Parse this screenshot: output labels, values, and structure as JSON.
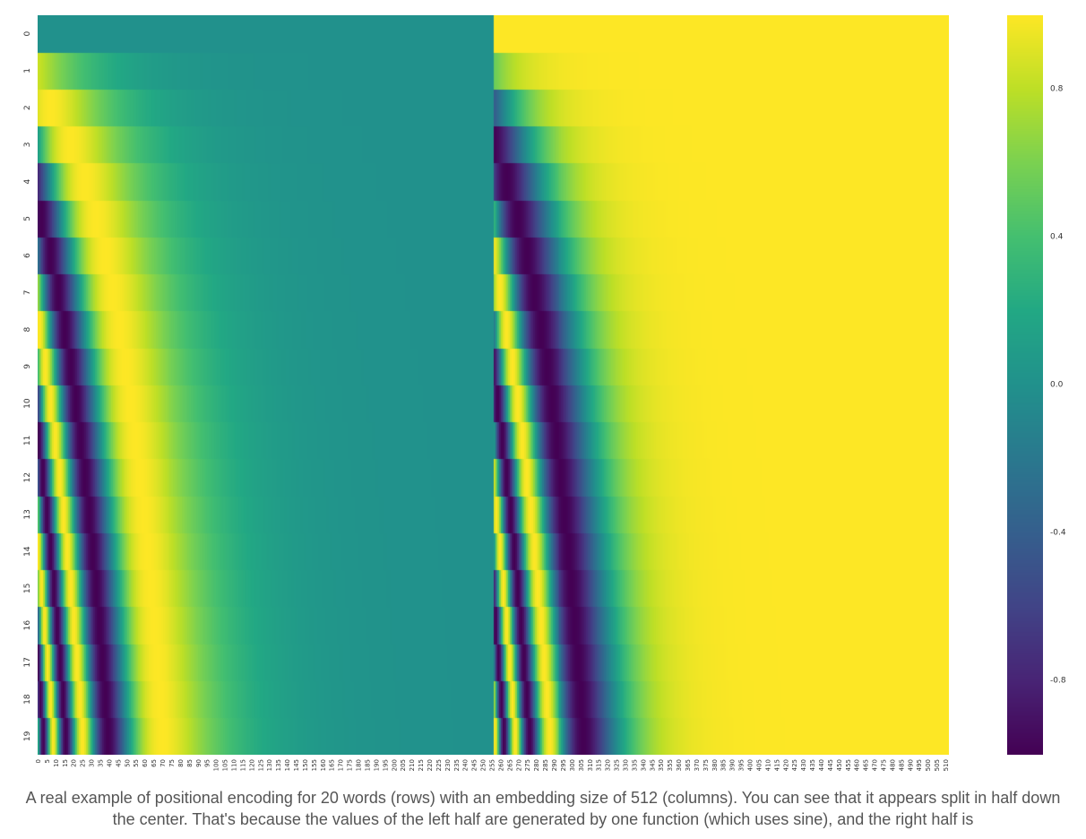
{
  "chart_data": {
    "type": "heatmap",
    "title": "",
    "xlabel": "",
    "ylabel": "",
    "rows": 20,
    "columns": 512,
    "row_labels": [
      "0",
      "1",
      "2",
      "3",
      "4",
      "5",
      "6",
      "7",
      "8",
      "9",
      "10",
      "11",
      "12",
      "13",
      "14",
      "15",
      "16",
      "17",
      "18",
      "19"
    ],
    "x_tick_labels": [
      "0",
      "5",
      "10",
      "15",
      "20",
      "25",
      "30",
      "35",
      "40",
      "45",
      "50",
      "55",
      "60",
      "65",
      "70",
      "75",
      "80",
      "85",
      "90",
      "95",
      "100",
      "105",
      "110",
      "115",
      "120",
      "125",
      "130",
      "135",
      "140",
      "145",
      "150",
      "155",
      "160",
      "165",
      "170",
      "175",
      "180",
      "185",
      "190",
      "195",
      "200",
      "205",
      "210",
      "215",
      "220",
      "225",
      "230",
      "235",
      "240",
      "245",
      "250",
      "255",
      "260",
      "265",
      "270",
      "275",
      "280",
      "285",
      "290",
      "295",
      "300",
      "305",
      "310",
      "315",
      "320",
      "325",
      "330",
      "335",
      "340",
      "345",
      "350",
      "355",
      "360",
      "365",
      "370",
      "375",
      "380",
      "385",
      "390",
      "395",
      "400",
      "405",
      "410",
      "415",
      "420",
      "425",
      "430",
      "435",
      "440",
      "445",
      "450",
      "455",
      "460",
      "465",
      "470",
      "475",
      "480",
      "485",
      "490",
      "495",
      "500",
      "505",
      "510"
    ],
    "x_tick_step": 5,
    "value_function": {
      "left_half": "sin(pos / 10000^(2i/512)), columns 0-255",
      "right_half": "cos(pos / 10000^(2i/512)), columns 256-511"
    },
    "value_range": [
      -1,
      1
    ],
    "colormap": "viridis",
    "colorbar_ticks": [
      "0.8",
      "0.4",
      "0.0",
      "-0.4",
      "-0.8"
    ],
    "colorbar_tick_values": [
      0.8,
      0.4,
      0.0,
      -0.4,
      -0.8
    ]
  },
  "caption": "A real example of positional encoding for 20 words (rows) with an embedding size of 512 (columns). You can see that it appears split in half down the center. That's because the values of the left half are generated by one function (which uses sine), and the right half is"
}
